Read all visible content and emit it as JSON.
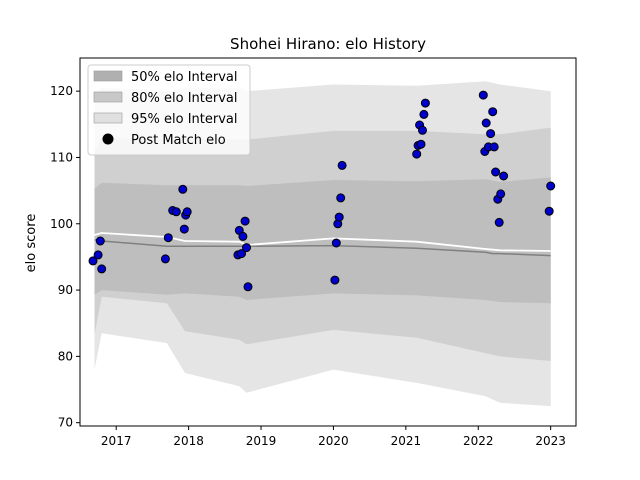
{
  "chart_data": {
    "type": "scatter",
    "title": "Shohei Hirano: elo History",
    "xlabel": "",
    "ylabel": "elo score",
    "xlim": [
      2016.5,
      2023.35
    ],
    "ylim": [
      69.5,
      125
    ],
    "x_ticks": [
      2017,
      2018,
      2019,
      2020,
      2021,
      2022,
      2023
    ],
    "y_ticks": [
      70,
      80,
      90,
      100,
      110,
      120
    ],
    "grid": false,
    "legend_position": "top-left",
    "legend": [
      {
        "label": "50% elo Interval",
        "kind": "band",
        "color": "#b0b0b0"
      },
      {
        "label": "80% elo Interval",
        "kind": "band",
        "color": "#c8c8c8"
      },
      {
        "label": "95% elo Interval",
        "kind": "band",
        "color": "#e0e0e0"
      },
      {
        "label": "Post Match elo",
        "kind": "marker",
        "color": "#000000"
      }
    ],
    "mean_line": {
      "color": "#808080",
      "x": [
        2016.7,
        2016.8,
        2017.7,
        2017.95,
        2018.7,
        2020.0,
        2021.15,
        2022.1,
        2022.2,
        2022.3,
        2023.0
      ],
      "y": [
        97.6,
        97.4,
        96.6,
        96.6,
        96.6,
        96.7,
        96.3,
        95.7,
        95.5,
        95.5,
        95.2
      ]
    },
    "median_line": {
      "color": "#ffffff",
      "x": [
        2016.7,
        2016.8,
        2017.7,
        2017.95,
        2018.7,
        2018.8,
        2020.0,
        2021.15,
        2022.1,
        2022.3,
        2023.0
      ],
      "y": [
        98.3,
        98.6,
        98.0,
        97.4,
        97.3,
        96.8,
        97.8,
        97.3,
        96.2,
        96.0,
        95.9
      ]
    },
    "bands": [
      {
        "name": "95% elo Interval",
        "color": "#e0e0e0",
        "x": [
          2016.7,
          2016.8,
          2017.7,
          2017.95,
          2018.7,
          2018.8,
          2020.0,
          2021.15,
          2022.1,
          2022.3,
          2023.0
        ],
        "upper": [
          119.5,
          120.5,
          120.0,
          120.5,
          120.5,
          120.0,
          121.0,
          120.8,
          121.5,
          121.0,
          120.0
        ],
        "lower": [
          78.0,
          83.5,
          82.0,
          77.5,
          75.5,
          74.5,
          78.0,
          76.0,
          74.0,
          73.0,
          72.5
        ]
      },
      {
        "name": "80% elo Interval",
        "color": "#cccccc",
        "x": [
          2016.7,
          2016.8,
          2017.7,
          2017.95,
          2018.7,
          2018.8,
          2020.0,
          2021.15,
          2022.1,
          2022.3,
          2023.0
        ],
        "upper": [
          111.0,
          113.0,
          112.7,
          113.0,
          112.7,
          112.7,
          114.0,
          114.0,
          113.5,
          113.5,
          114.5
        ],
        "lower": [
          83.3,
          89.0,
          88.0,
          83.8,
          82.5,
          81.8,
          84.0,
          82.8,
          80.5,
          80.0,
          79.3
        ]
      },
      {
        "name": "50% elo Interval",
        "color": "#bbbbbb",
        "x": [
          2016.7,
          2016.8,
          2017.7,
          2017.95,
          2018.7,
          2018.8,
          2020.0,
          2021.15,
          2022.1,
          2022.3,
          2023.0
        ],
        "upper": [
          105.3,
          106.2,
          105.8,
          105.8,
          105.8,
          105.7,
          106.6,
          106.4,
          106.7,
          106.3,
          107.0
        ],
        "lower": [
          89.3,
          90.0,
          89.3,
          89.5,
          89.0,
          88.5,
          89.5,
          89.2,
          88.5,
          88.2,
          88.0
        ]
      }
    ],
    "points": {
      "name": "Post Match elo",
      "color": "#0000cc",
      "edge": "#000000",
      "x": [
        2016.68,
        2016.75,
        2016.78,
        2016.8,
        2017.68,
        2017.72,
        2017.78,
        2017.83,
        2017.92,
        2017.94,
        2017.96,
        2017.98,
        2018.68,
        2018.7,
        2018.73,
        2018.75,
        2018.78,
        2018.8,
        2018.82,
        2020.02,
        2020.04,
        2020.06,
        2020.08,
        2020.1,
        2020.12,
        2021.15,
        2021.17,
        2021.19,
        2021.21,
        2021.23,
        2021.25,
        2021.27,
        2022.07,
        2022.09,
        2022.11,
        2022.14,
        2022.17,
        2022.2,
        2022.22,
        2022.24,
        2022.27,
        2022.29,
        2022.31,
        2022.35,
        2022.98,
        2023.0
      ],
      "y": [
        94.4,
        95.3,
        97.4,
        93.2,
        94.7,
        97.9,
        102.0,
        101.8,
        105.2,
        99.2,
        101.3,
        101.8,
        95.3,
        99.0,
        95.5,
        98.1,
        100.4,
        96.4,
        90.5,
        91.5,
        97.1,
        100.0,
        101.0,
        103.9,
        108.8,
        110.5,
        111.8,
        114.9,
        112.0,
        114.1,
        116.5,
        118.2,
        119.4,
        110.9,
        115.2,
        111.6,
        113.6,
        116.9,
        111.6,
        107.8,
        103.7,
        100.2,
        104.5,
        107.2,
        101.9,
        105.7
      ]
    }
  }
}
